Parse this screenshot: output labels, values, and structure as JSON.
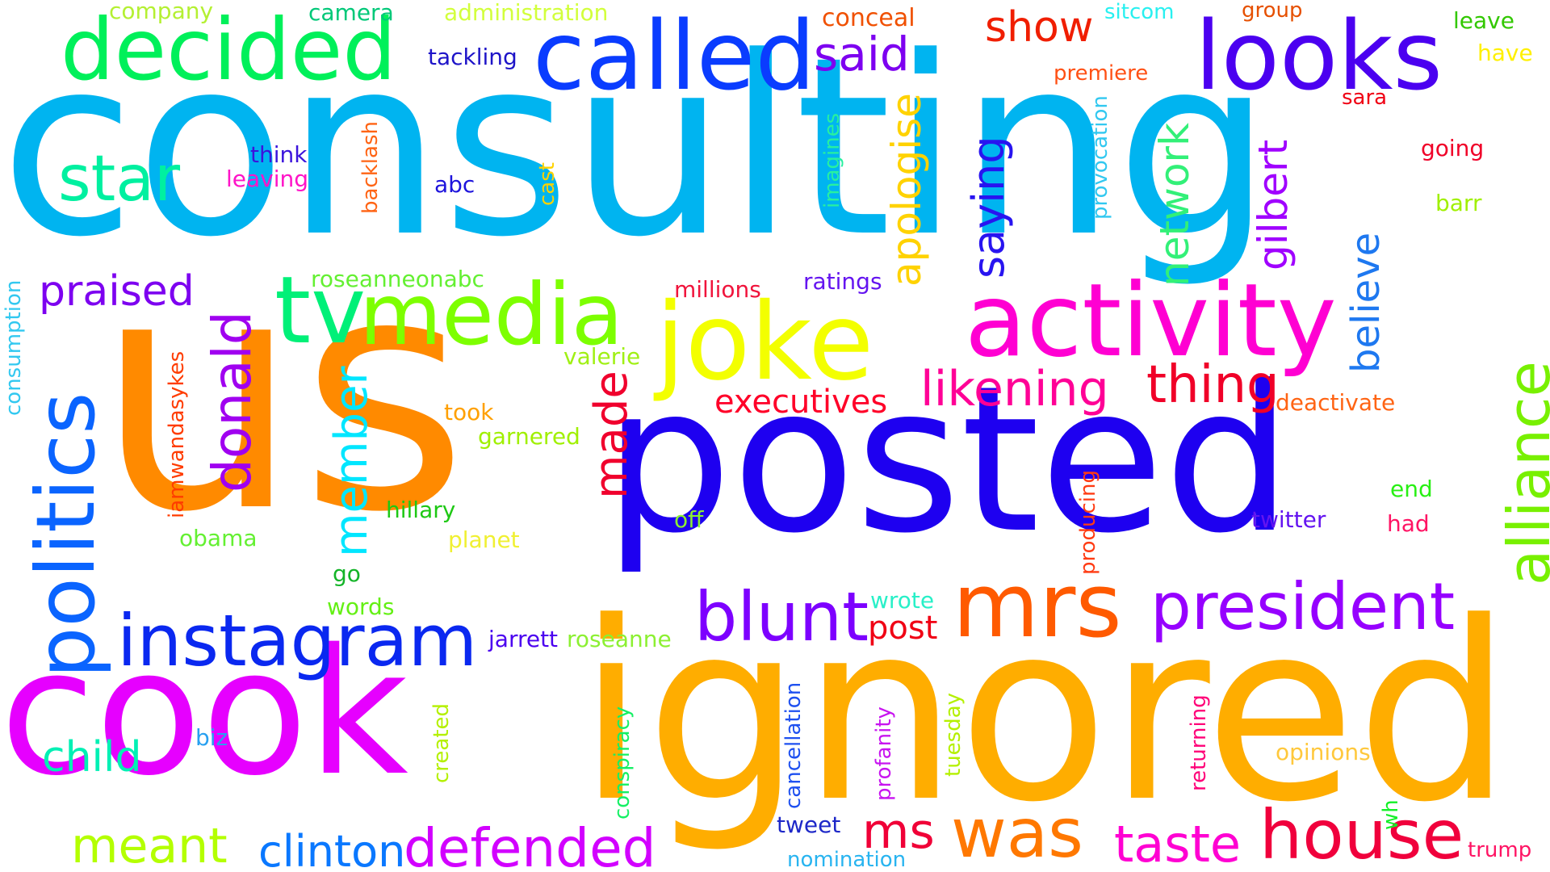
{
  "words": [
    {
      "text": "consulting",
      "color": "#00b4f0",
      "rotated": false
    },
    {
      "text": "us",
      "color": "#ff8a00",
      "rotated": false
    },
    {
      "text": "posted",
      "color": "#1e00f0",
      "rotated": false
    },
    {
      "text": "ignored",
      "color": "#ffad00",
      "rotated": false
    },
    {
      "text": "cook",
      "color": "#e600ff",
      "rotated": false
    },
    {
      "text": "joke",
      "color": "#f3ff00",
      "rotated": false
    },
    {
      "text": "activity",
      "color": "#ff00d2",
      "rotated": false
    },
    {
      "text": "called",
      "color": "#0a3cff",
      "rotated": false
    },
    {
      "text": "looks",
      "color": "#4b00f0",
      "rotated": false
    },
    {
      "text": "decided",
      "color": "#00f05a",
      "rotated": false
    },
    {
      "text": "media",
      "color": "#7dff00",
      "rotated": false
    },
    {
      "text": "tv",
      "color": "#00f078",
      "rotated": false
    },
    {
      "text": "mrs",
      "color": "#ff5a00",
      "rotated": false
    },
    {
      "text": "politics",
      "color": "#0a64ff",
      "rotated": true
    },
    {
      "text": "instagram",
      "color": "#0a28f0",
      "rotated": false
    },
    {
      "text": "president",
      "color": "#9600ff",
      "rotated": false
    },
    {
      "text": "blunt",
      "color": "#7d00ff",
      "rotated": false
    },
    {
      "text": "house",
      "color": "#f0003c",
      "rotated": false
    },
    {
      "text": "was",
      "color": "#ff7800",
      "rotated": false
    },
    {
      "text": "defended",
      "color": "#d200ff",
      "rotated": false
    },
    {
      "text": "alliance",
      "color": "#78f000",
      "rotated": true
    },
    {
      "text": "star",
      "color": "#00f0a0",
      "rotated": false
    },
    {
      "text": "donald",
      "color": "#a000f0",
      "rotated": true
    },
    {
      "text": "thing",
      "color": "#f00028",
      "rotated": false
    },
    {
      "text": "likening",
      "color": "#ff0096",
      "rotated": false
    },
    {
      "text": "member",
      "color": "#00e6ff",
      "rotated": true
    },
    {
      "text": "made",
      "color": "#f0002d",
      "rotated": true
    },
    {
      "text": "meant",
      "color": "#b4ff00",
      "rotated": false
    },
    {
      "text": "taste",
      "color": "#ff00d2",
      "rotated": false
    },
    {
      "text": "clinton",
      "color": "#0a78ff",
      "rotated": false
    },
    {
      "text": "ms",
      "color": "#f00037",
      "rotated": false
    },
    {
      "text": "said",
      "color": "#7d00f0",
      "rotated": false
    },
    {
      "text": "saying",
      "color": "#2814f0",
      "rotated": true
    },
    {
      "text": "apologise",
      "color": "#ffd200",
      "rotated": true
    },
    {
      "text": "show",
      "color": "#f01e00",
      "rotated": false
    },
    {
      "text": "network",
      "color": "#32f078",
      "rotated": true
    },
    {
      "text": "gilbert",
      "color": "#a000ff",
      "rotated": true
    },
    {
      "text": "believe",
      "color": "#1e78f0",
      "rotated": true
    },
    {
      "text": "praised",
      "color": "#7d00f0",
      "rotated": false
    },
    {
      "text": "child",
      "color": "#00f0b4",
      "rotated": false
    },
    {
      "text": "executives",
      "color": "#ff0028",
      "rotated": false
    },
    {
      "text": "post",
      "color": "#f00014",
      "rotated": false
    },
    {
      "text": "company",
      "color": "#b4f032",
      "rotated": false
    },
    {
      "text": "camera",
      "color": "#00c878",
      "rotated": false
    },
    {
      "text": "administration",
      "color": "#d2ff3c",
      "rotated": false
    },
    {
      "text": "conceal",
      "color": "#f05000",
      "rotated": false
    },
    {
      "text": "sitcom",
      "color": "#28f0f0",
      "rotated": false
    },
    {
      "text": "group",
      "color": "#e65000",
      "rotated": false
    },
    {
      "text": "leave",
      "color": "#32c800",
      "rotated": false
    },
    {
      "text": "have",
      "color": "#fff000",
      "rotated": false
    },
    {
      "text": "tackling",
      "color": "#1e14c8",
      "rotated": false
    },
    {
      "text": "premiere",
      "color": "#ff5014",
      "rotated": false
    },
    {
      "text": "sara",
      "color": "#f00014",
      "rotated": false
    },
    {
      "text": "going",
      "color": "#f00028",
      "rotated": false
    },
    {
      "text": "barr",
      "color": "#a0f000",
      "rotated": false
    },
    {
      "text": "think",
      "color": "#3c14dc",
      "rotated": false
    },
    {
      "text": "leaving",
      "color": "#ff14c8",
      "rotated": false
    },
    {
      "text": "abc",
      "color": "#1e14dc",
      "rotated": false
    },
    {
      "text": "backlash",
      "color": "#ff6414",
      "rotated": true
    },
    {
      "text": "cast",
      "color": "#ffd200",
      "rotated": true
    },
    {
      "text": "imagines",
      "color": "#28f0a0",
      "rotated": true
    },
    {
      "text": "provocation",
      "color": "#32c8f0",
      "rotated": true
    },
    {
      "text": "roseanneonabc",
      "color": "#64f032",
      "rotated": false
    },
    {
      "text": "millions",
      "color": "#f0143c",
      "rotated": false
    },
    {
      "text": "ratings",
      "color": "#6414f0",
      "rotated": false
    },
    {
      "text": "consumption",
      "color": "#32c8f0",
      "rotated": true
    },
    {
      "text": "iamwandasykes",
      "color": "#ff3c00",
      "rotated": true
    },
    {
      "text": "valerie",
      "color": "#a0f014",
      "rotated": false
    },
    {
      "text": "took",
      "color": "#ffa000",
      "rotated": false
    },
    {
      "text": "garnered",
      "color": "#a0f000",
      "rotated": false
    },
    {
      "text": "deactivate",
      "color": "#ff6414",
      "rotated": false
    },
    {
      "text": "end",
      "color": "#28f014",
      "rotated": false
    },
    {
      "text": "had",
      "color": "#ff1464",
      "rotated": false
    },
    {
      "text": "twitter",
      "color": "#6414f0",
      "rotated": false
    },
    {
      "text": "hillary",
      "color": "#1ec814",
      "rotated": false
    },
    {
      "text": "obama",
      "color": "#64f032",
      "rotated": false
    },
    {
      "text": "planet",
      "color": "#f0f032",
      "rotated": false
    },
    {
      "text": "off",
      "color": "#8cf032",
      "rotated": false
    },
    {
      "text": "producing",
      "color": "#ff3c14",
      "rotated": true
    },
    {
      "text": "go",
      "color": "#14b428",
      "rotated": false
    },
    {
      "text": "words",
      "color": "#64f014",
      "rotated": false
    },
    {
      "text": "wrote",
      "color": "#28f0c8",
      "rotated": false
    },
    {
      "text": "jarrett",
      "color": "#4b00f0",
      "rotated": false
    },
    {
      "text": "roseanne",
      "color": "#8cf032",
      "rotated": false
    },
    {
      "text": "created",
      "color": "#b4f000",
      "rotated": true
    },
    {
      "text": "conspiracy",
      "color": "#14f064",
      "rotated": true
    },
    {
      "text": "cancellation",
      "color": "#1e50f0",
      "rotated": true
    },
    {
      "text": "profanity",
      "color": "#c814f0",
      "rotated": true
    },
    {
      "text": "tuesday",
      "color": "#b4f000",
      "rotated": true
    },
    {
      "text": "returning",
      "color": "#ff0078",
      "rotated": true
    },
    {
      "text": "opinions",
      "color": "#ffc83c",
      "rotated": false
    },
    {
      "text": "wh",
      "color": "#14f028",
      "rotated": true
    },
    {
      "text": "biz",
      "color": "#28a0f0",
      "rotated": false
    },
    {
      "text": "tweet",
      "color": "#1e28c8",
      "rotated": false
    },
    {
      "text": "nomination",
      "color": "#28b4f0",
      "rotated": false
    },
    {
      "text": "trump",
      "color": "#ff1464",
      "rotated": false
    }
  ]
}
